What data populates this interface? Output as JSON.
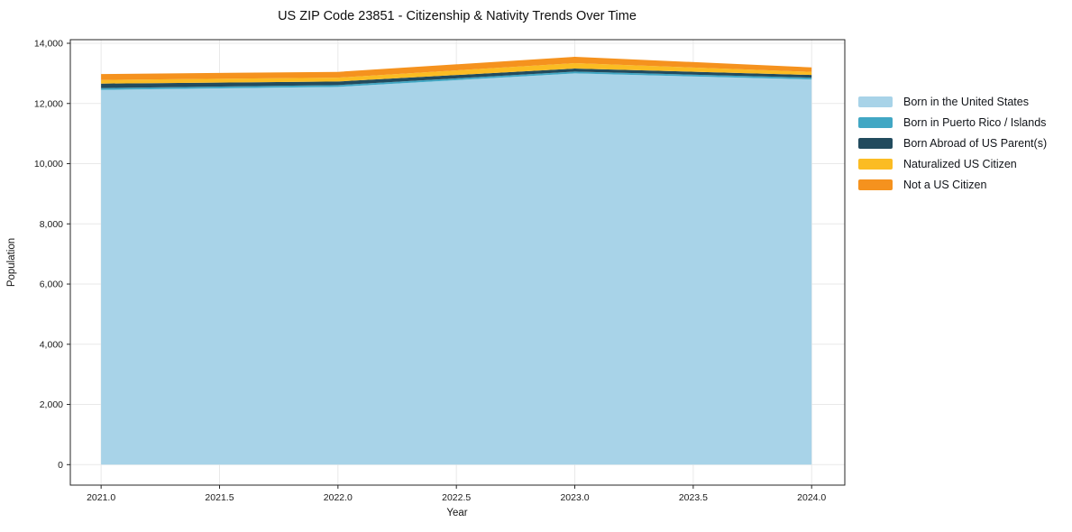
{
  "title": "US ZIP Code 23851 - Citizenship & Nativity Trends Over Time",
  "chart_data": {
    "type": "area",
    "stacked": true,
    "title": "US ZIP Code 23851 - Citizenship & Nativity Trends Over Time",
    "xlabel": "Year",
    "ylabel": "Population",
    "x": [
      2021,
      2022,
      2023,
      2024
    ],
    "series": [
      {
        "name": "Born in the United States",
        "color": "#a8d3e8",
        "values": [
          12450,
          12550,
          13000,
          12800
        ]
      },
      {
        "name": "Born in Puerto Rico / Islands",
        "color": "#41a7c4",
        "values": [
          60,
          60,
          60,
          60
        ]
      },
      {
        "name": "Born Abroad of US Parent(s)",
        "color": "#224b5e",
        "values": [
          150,
          120,
          100,
          90
        ]
      },
      {
        "name": "Naturalized US Citizen",
        "color": "#fbbc23",
        "values": [
          120,
          130,
          180,
          100
        ]
      },
      {
        "name": "Not a US Citizen",
        "color": "#f5921e",
        "values": [
          200,
          190,
          210,
          150
        ]
      }
    ],
    "xticks": [
      2021.0,
      2021.5,
      2022.0,
      2022.5,
      2023.0,
      2023.5,
      2024.0
    ],
    "xtick_labels": [
      "2021.0",
      "2021.5",
      "2022.0",
      "2022.5",
      "2023.0",
      "2023.5",
      "2024.0"
    ],
    "yticks": [
      0,
      2000,
      4000,
      6000,
      8000,
      10000,
      12000,
      14000
    ],
    "ytick_labels": [
      "0",
      "2,000",
      "4,000",
      "6,000",
      "8,000",
      "10,000",
      "12,000",
      "14,000"
    ],
    "xlim": [
      2020.87,
      2024.14
    ],
    "ylim": [
      -680,
      14120
    ],
    "grid": true,
    "grid_color": "#e9e9e9",
    "spine_color": "#262626",
    "legend_position": "right"
  }
}
